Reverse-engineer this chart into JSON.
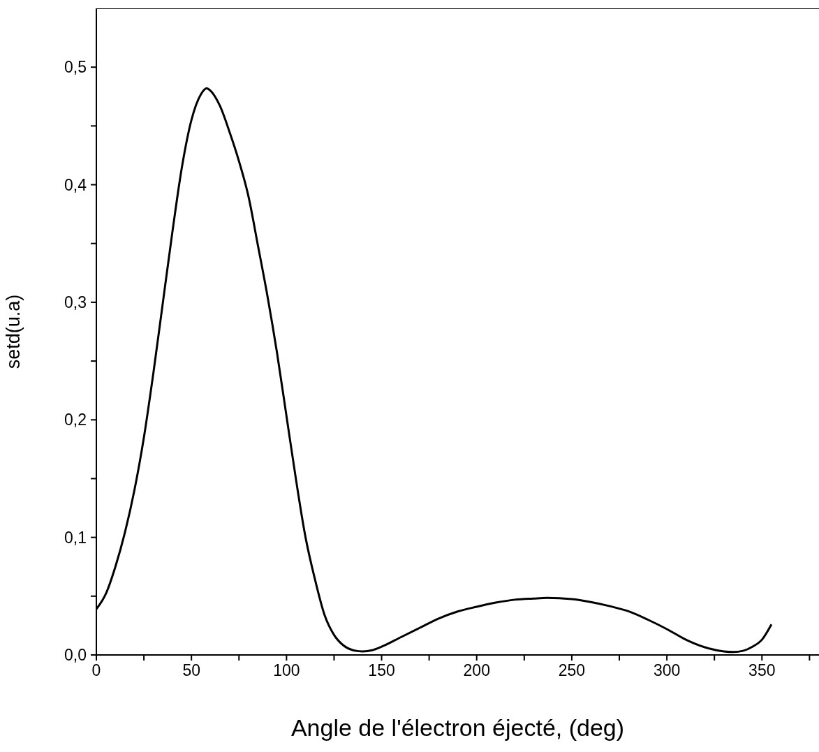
{
  "chart_data": {
    "type": "line",
    "xlabel": "Angle de l'électron éjecté, (deg)",
    "ylabel": "setd(u.a)",
    "x": [
      0,
      5,
      10,
      15,
      20,
      25,
      30,
      35,
      40,
      45,
      50,
      55,
      58,
      60,
      65,
      70,
      75,
      80,
      85,
      90,
      95,
      100,
      105,
      110,
      115,
      120,
      125,
      130,
      135,
      140,
      145,
      150,
      160,
      170,
      180,
      190,
      200,
      210,
      220,
      230,
      237,
      250,
      260,
      270,
      280,
      290,
      300,
      310,
      320,
      330,
      335,
      340,
      345,
      350,
      355
    ],
    "series": [
      {
        "color": "#000000",
        "values": [
          0.039,
          0.052,
          0.075,
          0.104,
          0.14,
          0.185,
          0.24,
          0.3,
          0.36,
          0.415,
          0.455,
          0.477,
          0.482,
          0.48,
          0.467,
          0.445,
          0.42,
          0.39,
          0.348,
          0.305,
          0.257,
          0.203,
          0.149,
          0.1,
          0.064,
          0.034,
          0.017,
          0.008,
          0.004,
          0.003,
          0.004,
          0.007,
          0.015,
          0.023,
          0.031,
          0.037,
          0.041,
          0.0445,
          0.047,
          0.048,
          0.0485,
          0.0475,
          0.045,
          0.0415,
          0.037,
          0.03,
          0.022,
          0.013,
          0.0065,
          0.003,
          0.0025,
          0.0035,
          0.007,
          0.013,
          0.026
        ]
      }
    ],
    "xlim": [
      0,
      380
    ],
    "xticks": [
      0,
      {
        "value": 25,
        "label": null
      },
      50,
      {
        "value": 75,
        "label": null
      },
      100,
      {
        "value": 125,
        "label": null
      },
      150,
      {
        "value": 175,
        "label": null
      },
      200,
      {
        "value": 225,
        "label": null
      },
      250,
      {
        "value": 275,
        "label": null
      },
      300,
      {
        "value": 325,
        "label": null
      },
      350,
      {
        "value": 375,
        "label": null
      }
    ],
    "ylim": [
      0,
      0.55
    ],
    "yticks": [
      {
        "value": 0,
        "label": "0,0"
      },
      {
        "value": 0.05,
        "label": null
      },
      {
        "value": 0.1,
        "label": "0,1"
      },
      {
        "value": 0.15,
        "label": null
      },
      {
        "value": 0.2,
        "label": "0,2"
      },
      {
        "value": 0.25,
        "label": null
      },
      {
        "value": 0.3,
        "label": "0,3"
      },
      {
        "value": 0.35,
        "label": null
      },
      {
        "value": 0.4,
        "label": "0,4"
      },
      {
        "value": 0.45,
        "label": null
      },
      {
        "value": 0.5,
        "label": "0,5"
      }
    ],
    "marker": "none",
    "line_style": "solid"
  }
}
